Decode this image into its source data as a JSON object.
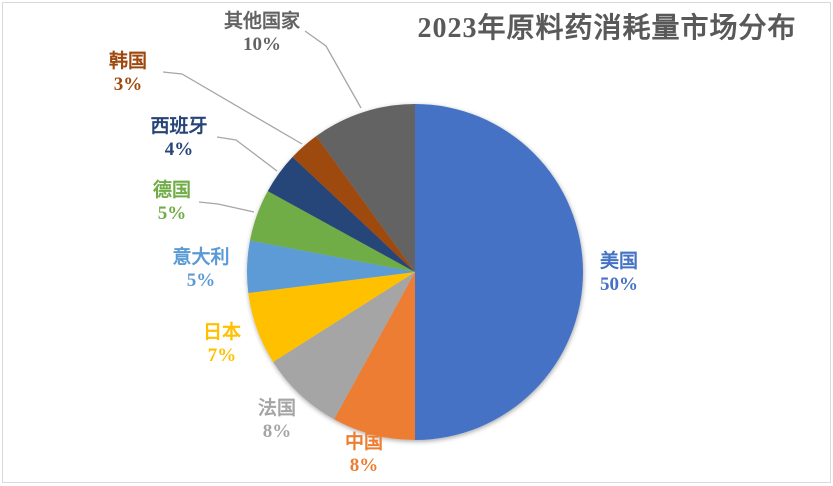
{
  "chart_data": {
    "type": "pie",
    "title": "2023年原料药消耗量市场分布",
    "direction": "clockwise",
    "start_angle_deg": 0,
    "legend_position": "none",
    "label_style": "outside, category name above percent, colored to match slice",
    "slices": [
      {
        "label": "美国",
        "value": 50,
        "pct_label": "50%",
        "color": "#4472C4"
      },
      {
        "label": "中国",
        "value": 8,
        "pct_label": "8%",
        "color": "#ED7D31"
      },
      {
        "label": "法国",
        "value": 8,
        "pct_label": "8%",
        "color": "#A5A5A5"
      },
      {
        "label": "日本",
        "value": 7,
        "pct_label": "7%",
        "color": "#FFC000"
      },
      {
        "label": "意大利",
        "value": 5,
        "pct_label": "5%",
        "color": "#5B9BD5"
      },
      {
        "label": "德国",
        "value": 5,
        "pct_label": "5%",
        "color": "#70AD47"
      },
      {
        "label": "西班牙",
        "value": 4,
        "pct_label": "4%",
        "color": "#264478"
      },
      {
        "label": "韩国",
        "value": 3,
        "pct_label": "3%",
        "color": "#9E480E"
      },
      {
        "label": "其他国家",
        "value": 10,
        "pct_label": "10%",
        "color": "#636363"
      }
    ]
  },
  "style": {
    "title_color": "#595959",
    "leader_line_color": "#A6A6A6",
    "frame_border_color": "#D9D9D9",
    "background_color": "#FFFFFF"
  }
}
